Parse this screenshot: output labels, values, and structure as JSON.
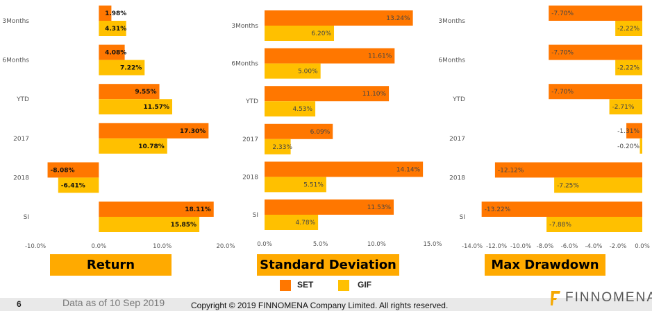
{
  "colors": {
    "set": "#FF7700",
    "gif": "#FFC000",
    "title_bg": "#FFAA00"
  },
  "chart_data": [
    {
      "type": "bar",
      "orientation": "horizontal",
      "title": "Return",
      "categories": [
        "3Months",
        "6Months",
        "YTD",
        "2017",
        "2018",
        "SI"
      ],
      "series": [
        {
          "name": "SET",
          "values": [
            1.98,
            4.08,
            9.55,
            17.3,
            -8.08,
            18.11
          ],
          "labels": [
            "1.98%",
            "4.08%",
            "9.55%",
            "17.30%",
            "-8.08%",
            "18.11%"
          ]
        },
        {
          "name": "GIF",
          "values": [
            4.31,
            7.22,
            11.57,
            10.78,
            -6.41,
            15.85
          ],
          "labels": [
            "4.31%",
            "7.22%",
            "11.57%",
            "10.78%",
            "-6.41%",
            "15.85%"
          ]
        }
      ],
      "xlim": [
        -10,
        20
      ],
      "ticks": [
        -10,
        0,
        10,
        20
      ],
      "tick_labels": [
        "-10.0%",
        "0.0%",
        "10.0%",
        "20.0%"
      ]
    },
    {
      "type": "bar",
      "orientation": "horizontal",
      "title": "Standard Deviation",
      "categories": [
        "3Months",
        "6Months",
        "YTD",
        "2017",
        "2018",
        "SI"
      ],
      "series": [
        {
          "name": "SET",
          "values": [
            13.24,
            11.61,
            11.1,
            6.09,
            14.14,
            11.53
          ],
          "labels": [
            "13.24%",
            "11.61%",
            "11.10%",
            "6.09%",
            "14.14%",
            "11.53%"
          ]
        },
        {
          "name": "GIF",
          "values": [
            6.2,
            5.0,
            4.53,
            2.33,
            5.51,
            4.78
          ],
          "labels": [
            "6.20%",
            "5.00%",
            "4.53%",
            "2.33%",
            "5.51%",
            "4.78%"
          ]
        }
      ],
      "xlim": [
        0,
        15
      ],
      "ticks": [
        0,
        5,
        10,
        15
      ],
      "tick_labels": [
        "0.0%",
        "5.0%",
        "10.0%",
        "15.0%"
      ]
    },
    {
      "type": "bar",
      "orientation": "horizontal",
      "title": "Max Drawdown",
      "categories": [
        "3Months",
        "6Months",
        "YTD",
        "2017",
        "2018",
        "SI"
      ],
      "series": [
        {
          "name": "SET",
          "values": [
            -7.7,
            -7.7,
            -7.7,
            -1.31,
            -12.12,
            -13.22
          ],
          "labels": [
            "-7.70%",
            "-7.70%",
            "-7.70%",
            "-1.31%",
            "-12.12%",
            "-13.22%"
          ]
        },
        {
          "name": "GIF",
          "values": [
            -2.22,
            -2.22,
            -2.71,
            -0.2,
            -7.25,
            -7.88
          ],
          "labels": [
            "-2.22%",
            "-2.22%",
            "-2.71%",
            "-0.20%",
            "-7.25%",
            "-7.88%"
          ]
        }
      ],
      "xlim": [
        -14,
        0
      ],
      "ticks": [
        -14,
        -12,
        -10,
        -8,
        -6,
        -4,
        -2,
        0
      ],
      "tick_labels": [
        "-14.0%",
        "-12.0%",
        "-10.0%",
        "-8.0%",
        "-6.0%",
        "-4.0%",
        "-2.0%",
        "0.0%"
      ]
    }
  ],
  "legend": {
    "set": "SET",
    "gif": "GIF"
  },
  "footer": {
    "page": "6",
    "as_of": "Data as of 10 Sep 2019",
    "copyright": "Copyright © 2019 FINNOMENA Company Limited. All rights reserved.",
    "logo": "FINNOMENA"
  }
}
